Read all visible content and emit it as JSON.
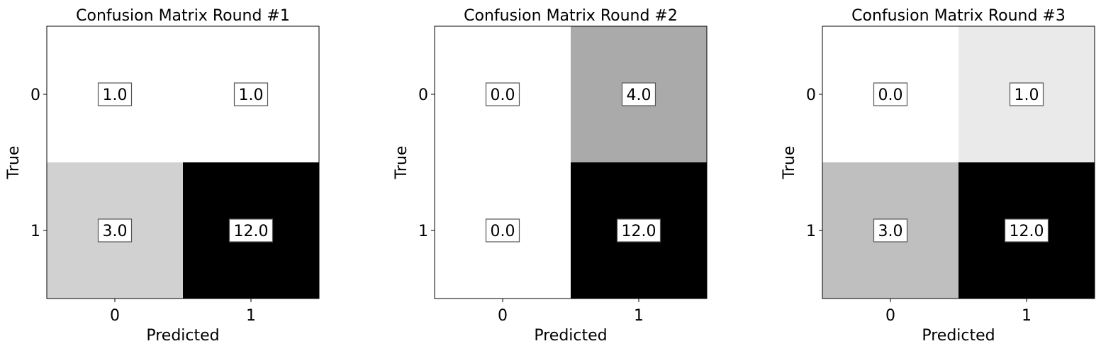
{
  "chart_data": [
    {
      "type": "heatmap",
      "title": "Confusion Matrix Round #1",
      "xlabel": "Predicted",
      "ylabel": "True",
      "x_categories": [
        "0",
        "1"
      ],
      "y_categories": [
        "0",
        "1"
      ],
      "values": [
        [
          1.0,
          1.0
        ],
        [
          3.0,
          12.0
        ]
      ],
      "value_labels": [
        [
          "1.0",
          "1.0"
        ],
        [
          "3.0",
          "12.0"
        ]
      ],
      "colormap": "gray_r"
    },
    {
      "type": "heatmap",
      "title": "Confusion Matrix Round #2",
      "xlabel": "Predicted",
      "ylabel": "True",
      "x_categories": [
        "0",
        "1"
      ],
      "y_categories": [
        "0",
        "1"
      ],
      "values": [
        [
          0.0,
          4.0
        ],
        [
          0.0,
          12.0
        ]
      ],
      "value_labels": [
        [
          "0.0",
          "4.0"
        ],
        [
          "0.0",
          "12.0"
        ]
      ],
      "colormap": "gray_r"
    },
    {
      "type": "heatmap",
      "title": "Confusion Matrix Round #3",
      "xlabel": "Predicted",
      "ylabel": "True",
      "x_categories": [
        "0",
        "1"
      ],
      "y_categories": [
        "0",
        "1"
      ],
      "values": [
        [
          0.0,
          1.0
        ],
        [
          3.0,
          12.0
        ]
      ],
      "value_labels": [
        [
          "0.0",
          "1.0"
        ],
        [
          "3.0",
          "12.0"
        ]
      ],
      "colormap": "gray_r"
    }
  ]
}
